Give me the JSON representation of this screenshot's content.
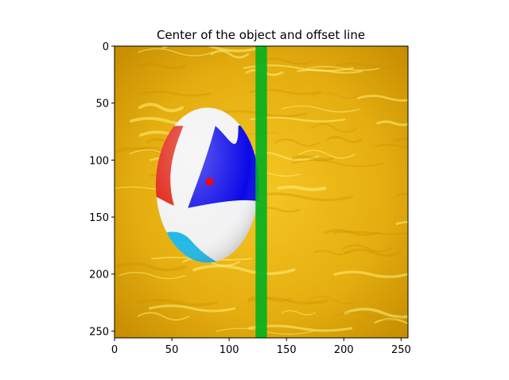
{
  "chart_data": {
    "type": "image",
    "title": "Center of the object and offset line",
    "xlim": [
      0,
      256
    ],
    "ylim": [
      256,
      0
    ],
    "xticks": [
      0,
      50,
      100,
      150,
      200,
      250
    ],
    "yticks": [
      0,
      50,
      100,
      150,
      200,
      250
    ],
    "xtick_labels": [
      "0",
      "50",
      "100",
      "150",
      "200",
      "250"
    ],
    "ytick_labels": [
      "0",
      "50",
      "100",
      "150",
      "200",
      "250"
    ],
    "offset_line": {
      "x": 128,
      "width": 10,
      "color": "#00b020"
    },
    "object_center": {
      "x": 83,
      "y": 119,
      "color": "#ff0000"
    },
    "ball": {
      "cx": 81,
      "cy": 122,
      "rx": 45,
      "ry": 68
    },
    "colors": {
      "water": "#e8b414",
      "water_dark": "#c88f00",
      "water_light": "#fff07a",
      "ball_white": "#f2f2f2",
      "ball_blue": "#0b08e8",
      "ball_red": "#e02010",
      "ball_cyan": "#22b8e8"
    }
  }
}
